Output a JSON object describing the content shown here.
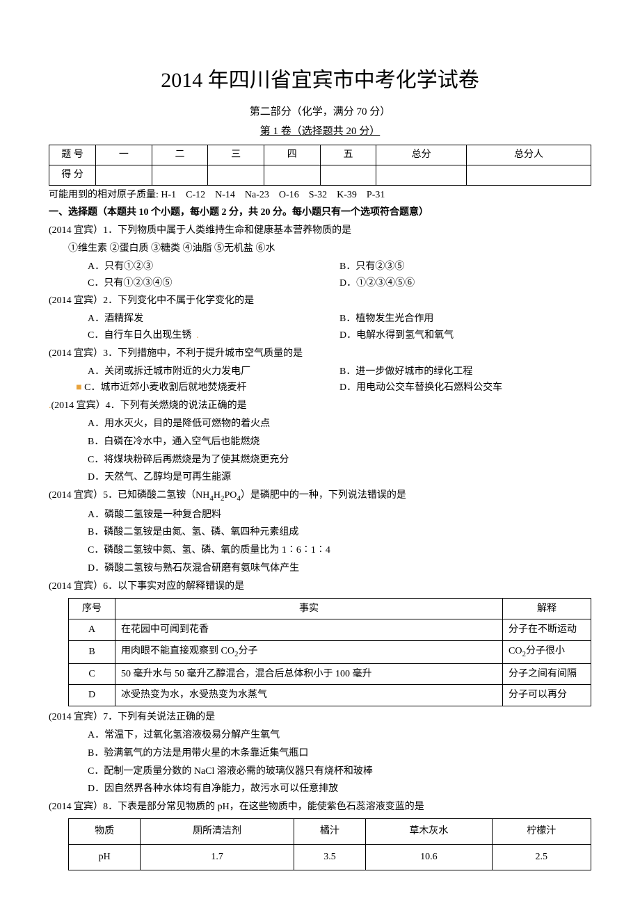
{
  "title": "2014 年四川省宜宾市中考化学试卷",
  "subtitle1": "第二部分（化学，满分 70 分）",
  "subtitle2": "第 1 卷（选择题共 20 分）",
  "score_header": [
    "题 号",
    "一",
    "二",
    "三",
    "四",
    "五",
    "总分",
    "总分人"
  ],
  "score_row2_label": "得 分",
  "atomic_mass": "可能用到的相对原子质量: H-1 C-12 N-14 Na-23 O-16 S-32 K-39 P-31",
  "section1": "一、选择题（本题共 10 个小题，每小题 2 分，共 20 分。每小题只有一个选项符合题意）",
  "q1": {
    "stem": "(2014 宜宾）1．下列物质中属于人类维持生命和健康基本营养物质的是",
    "sub": "①维生素 ②蛋白质 ③糖类 ④油脂 ⑤无机盐 ⑥水",
    "A": "A．只有①②③",
    "B": "B．只有②③⑤",
    "C": "C．只有①②③④⑤",
    "D": "D．①②③④⑤⑥"
  },
  "q2": {
    "stem": "(2014 宜宾）2．下列变化中不属于化学变化的是",
    "A": "A．酒精挥发",
    "B": "B．植物发生光合作用",
    "C": "C．自行车日久出现生锈",
    "D": "D．电解水得到氢气和氧气"
  },
  "q3": {
    "stem": "(2014 宜宾）3．下列措施中，不利于提升城市空气质量的是",
    "A": "A．关闭或拆迁城市附近的火力发电厂",
    "B": "B．进一步做好城市的绿化工程",
    "C": "C．城市近郊小麦收割后就地焚烧麦杆",
    "D": "D．用电动公交车替换化石燃料公交车"
  },
  "q4": {
    "stem": "(2014 宜宾）4．下列有关燃烧的说法正确的是",
    "A": "A．用水灭火，目的是降低可燃物的着火点",
    "B": "B．白磷在冷水中，通入空气后也能燃烧",
    "C": "C．将煤块粉碎后再燃烧是为了使其燃烧更充分",
    "D": "D．天然气、乙醇均是可再生能源"
  },
  "q5": {
    "stem_a": "(2014 宜宾）5．已知磷酸二氢铵（NH",
    "stem_b": "H",
    "stem_c": "PO",
    "stem_d": "）是磷肥中的一种，下列说法错误的是",
    "A": "A．磷酸二氢铵是一种复合肥料",
    "B": "B．磷酸二氢铵是由氮、氢、磷、氧四种元素组成",
    "C": "C．磷酸二氢铵中氮、氢、磷、氧的质量比为 1∶6∶1∶4",
    "D": "D．磷酸二氢铵与熟石灰混合研磨有氨味气体产生"
  },
  "q6": {
    "stem": "(2014 宜宾）6．以下事实对应的解释错误的是",
    "h1": "序号",
    "h2": "事实",
    "h3": "解释",
    "rA": {
      "n": "A",
      "f": "在花园中可闻到花香",
      "e": "分子在不断运动"
    },
    "rB": {
      "n": "B",
      "f_a": "用肉眼不能直接观察到 CO",
      "f_b": "分子",
      "e_a": "CO",
      "e_b": "分子很小"
    },
    "rC": {
      "n": "C",
      "f": "50 毫升水与 50 毫升乙醇混合，混合后总体积小于 100 毫升",
      "e": "分子之间有间隔"
    },
    "rD": {
      "n": "D",
      "f": "冰受热变为水，水受热变为水蒸气",
      "e": "分子可以再分"
    }
  },
  "q7": {
    "stem": "(2014 宜宾）7．下列有关说法正确的是",
    "A": "A．常温下，过氧化氢溶液极易分解产生氧气",
    "B": "B．验满氧气的方法是用带火星的木条靠近集气瓶口",
    "C": "C．配制一定质量分数的 NaCl 溶液必需的玻璃仪器只有烧杯和玻棒",
    "D": "D．因自然界各种水体均有自净能力，故污水可以任意排放"
  },
  "q8": {
    "stem": "(2014 宜宾）8．下表是部分常见物质的 pH，在这些物质中，能使紫色石蕊溶液变蓝的是",
    "cols": [
      "物质",
      "厕所清洁剂",
      "橘汁",
      "草木灰水",
      "柠檬汁"
    ],
    "row": [
      "pH",
      "1.7",
      "3.5",
      "10.6",
      "2.5"
    ]
  }
}
